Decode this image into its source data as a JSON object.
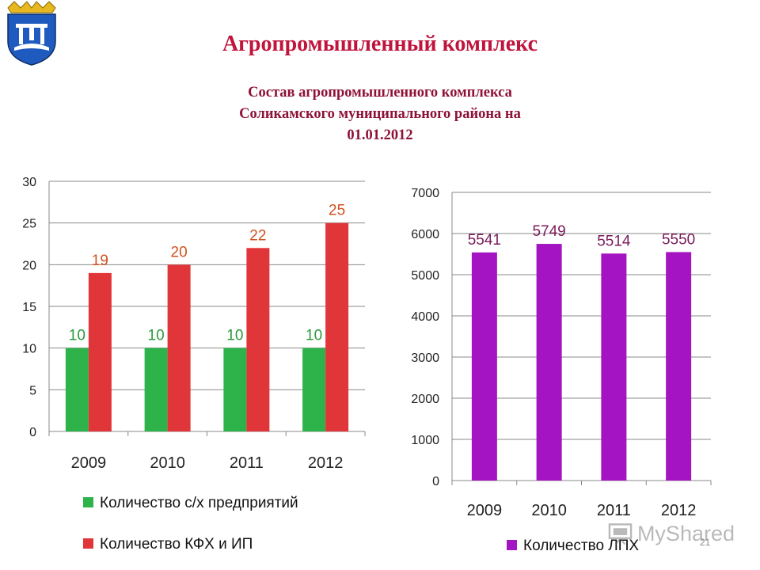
{
  "slide": {
    "title": "Агропромышленный комплекс",
    "subtitle_lines": [
      "Состав агропромышленного комплекса",
      "Соликамского муниципального района на",
      "01.01.2012"
    ],
    "page_number": "21",
    "watermark": "MyShared"
  },
  "colors": {
    "title": "#c0143c",
    "subtitle": "#8e1136",
    "green": "#2db34a",
    "red": "#e0363a",
    "purple": "#a514c2",
    "green_label": "#2a9a3a",
    "red_label": "#d0501e",
    "purple_label": "#7a1a5a"
  },
  "chart_data": [
    {
      "type": "bar",
      "categories": [
        "2009",
        "2010",
        "2011",
        "2012"
      ],
      "series": [
        {
          "name": "Количество с/х предприятий",
          "values": [
            10,
            10,
            10,
            10
          ],
          "color": "#2db34a"
        },
        {
          "name": "Количество КФХ и ИП",
          "values": [
            19,
            20,
            22,
            25
          ],
          "color": "#e0363a"
        }
      ],
      "ylim": [
        0,
        30
      ],
      "yticks": [
        "0",
        "5",
        "10",
        "15",
        "20",
        "25",
        "30"
      ],
      "grid": true,
      "legend": "bottom",
      "data_labels": true
    },
    {
      "type": "bar",
      "categories": [
        "2009",
        "2010",
        "2011",
        "2012"
      ],
      "series": [
        {
          "name": "Количество ЛПХ",
          "values": [
            5541,
            5749,
            5514,
            5550
          ],
          "color": "#a514c2"
        }
      ],
      "ylim": [
        0,
        7000
      ],
      "yticks": [
        "0",
        "1000",
        "2000",
        "3000",
        "4000",
        "5000",
        "6000",
        "7000"
      ],
      "grid": true,
      "legend": "bottom",
      "data_labels": true
    }
  ]
}
